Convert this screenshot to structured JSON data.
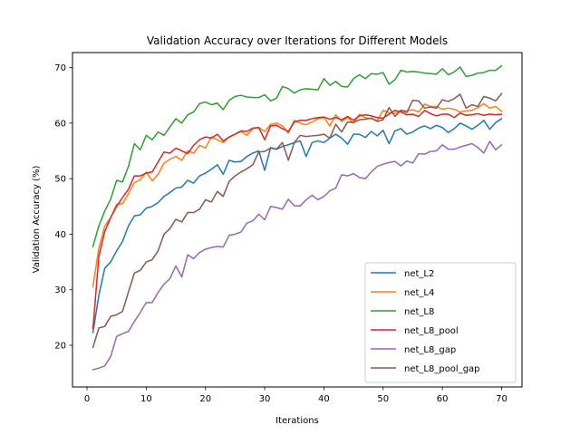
{
  "chart_data": {
    "type": "line",
    "title": "Validation Accuracy over Iterations for Different Models",
    "xlabel": "Iterations",
    "ylabel": "Validation Accuracy (%)",
    "xlim": [
      -2.45,
      73.45
    ],
    "ylim": [
      12.5,
      72.7
    ],
    "xticks": [
      0,
      10,
      20,
      30,
      40,
      50,
      60,
      70
    ],
    "yticks": [
      20,
      30,
      40,
      50,
      60,
      70
    ],
    "grid": false,
    "legend_position": "lower-right",
    "x": [
      1,
      2,
      3,
      4,
      5,
      6,
      7,
      8,
      9,
      10,
      11,
      12,
      13,
      14,
      15,
      16,
      17,
      18,
      19,
      20,
      21,
      22,
      23,
      24,
      25,
      26,
      27,
      28,
      29,
      30,
      31,
      32,
      33,
      34,
      35,
      36,
      37,
      38,
      39,
      40,
      41,
      42,
      43,
      44,
      45,
      46,
      47,
      48,
      49,
      50,
      51,
      52,
      53,
      54,
      55,
      56,
      57,
      58,
      59,
      60,
      61,
      62,
      63,
      64,
      65,
      66,
      67,
      68,
      69,
      70
    ],
    "series": [
      {
        "name": "net_L2",
        "color": "#1f77b4",
        "values": [
          22.3,
          29.0,
          33.9,
          35.0,
          37.0,
          38.7,
          41.5,
          43.3,
          43.5,
          44.7,
          45.0,
          45.7,
          46.8,
          47.5,
          48.3,
          48.5,
          49.7,
          49.2,
          50.5,
          51.0,
          51.7,
          52.5,
          50.8,
          53.3,
          53.0,
          53.1,
          54.0,
          54.6,
          55.0,
          51.5,
          55.6,
          55.3,
          55.8,
          56.1,
          56.5,
          56.8,
          54.0,
          56.5,
          56.8,
          56.5,
          57.3,
          58.0,
          57.3,
          56.2,
          58.0,
          58.0,
          57.4,
          58.5,
          57.7,
          58.7,
          56.3,
          58.6,
          59.0,
          58.0,
          58.4,
          59.1,
          59.5,
          59.0,
          59.6,
          59.2,
          58.3,
          59.0,
          60.0,
          59.5,
          58.9,
          59.6,
          60.5,
          58.9,
          60.1,
          60.8
        ]
      },
      {
        "name": "net_L4",
        "color": "#ff7f0e",
        "values": [
          30.6,
          37.5,
          41.5,
          43.0,
          45.4,
          45.5,
          47.3,
          49.3,
          49.8,
          51.2,
          49.6,
          50.8,
          52.8,
          53.5,
          54.0,
          53.3,
          55.0,
          54.6,
          56.0,
          55.5,
          57.5,
          57.0,
          56.5,
          57.5,
          58.0,
          58.5,
          57.8,
          59.0,
          59.2,
          58.5,
          59.8,
          60.0,
          59.5,
          58.2,
          60.5,
          60.0,
          59.7,
          60.2,
          60.8,
          61.0,
          59.5,
          61.5,
          60.3,
          61.0,
          60.0,
          61.6,
          61.0,
          60.8,
          60.5,
          62.3,
          61.9,
          61.7,
          62.3,
          62.2,
          62.4,
          62.0,
          63.4,
          63.0,
          63.0,
          62.5,
          62.7,
          62.5,
          62.0,
          62.2,
          62.3,
          62.8,
          63.5,
          62.7,
          63.0,
          62.1
        ]
      },
      {
        "name": "net_L8",
        "color": "#2ca02c",
        "values": [
          37.8,
          41.5,
          44.2,
          46.3,
          49.7,
          49.4,
          52.2,
          56.3,
          55.2,
          57.8,
          57.0,
          58.4,
          57.8,
          59.3,
          60.8,
          60.0,
          61.5,
          62.0,
          63.5,
          63.8,
          63.3,
          63.6,
          62.4,
          64.1,
          64.8,
          65.0,
          64.7,
          64.6,
          64.6,
          65.1,
          64.0,
          64.5,
          66.6,
          66.2,
          65.4,
          66.0,
          66.2,
          66.1,
          66.0,
          68.0,
          66.8,
          67.5,
          66.6,
          66.5,
          68.0,
          68.7,
          68.0,
          68.9,
          68.8,
          69.1,
          67.0,
          67.8,
          69.5,
          69.2,
          69.3,
          69.2,
          69.0,
          68.9,
          68.8,
          69.8,
          68.7,
          69.2,
          70.1,
          68.4,
          68.6,
          69.0,
          69.1,
          69.5,
          69.5,
          70.3
        ]
      },
      {
        "name": "net_L8_pool",
        "color": "#d62728",
        "values": [
          23.0,
          36.0,
          40.5,
          43.0,
          45.0,
          46.6,
          48.1,
          50.5,
          50.5,
          51.0,
          51.2,
          53.0,
          54.8,
          54.6,
          55.5,
          55.0,
          54.5,
          56.0,
          57.0,
          57.5,
          57.3,
          58.0,
          56.8,
          57.5,
          58.0,
          58.6,
          58.5,
          59.1,
          59.2,
          57.0,
          59.5,
          59.6,
          59.0,
          58.5,
          60.2,
          60.5,
          60.5,
          60.8,
          61.0,
          61.1,
          60.7,
          61.0,
          60.6,
          61.2,
          60.5,
          61.3,
          61.5,
          61.3,
          61.0,
          60.9,
          61.6,
          62.3,
          62.0,
          61.5,
          61.6,
          61.2,
          62.3,
          61.7,
          61.3,
          61.6,
          61.6,
          61.0,
          61.8,
          61.4,
          61.5,
          61.7,
          61.4,
          61.6,
          61.5,
          61.6
        ]
      },
      {
        "name": "net_L8_gap",
        "color": "#9467bd",
        "values": [
          15.6,
          15.9,
          16.3,
          18.0,
          21.6,
          22.1,
          22.5,
          24.3,
          25.9,
          27.7,
          27.7,
          29.5,
          31.0,
          32.0,
          34.3,
          32.3,
          36.3,
          35.6,
          36.7,
          37.3,
          37.6,
          37.8,
          37.7,
          39.8,
          40.0,
          40.4,
          42.0,
          42.4,
          43.6,
          42.6,
          45.0,
          44.8,
          44.5,
          46.3,
          45.1,
          45.1,
          46.2,
          47.0,
          46.2,
          46.8,
          47.8,
          48.3,
          50.7,
          50.5,
          50.9,
          50.2,
          50.0,
          51.2,
          52.2,
          52.6,
          52.9,
          53.1,
          52.3,
          53.2,
          52.8,
          54.5,
          54.4,
          54.9,
          55.0,
          56.1,
          55.3,
          55.3,
          55.7,
          56.0,
          56.3,
          55.6,
          54.6,
          56.7,
          55.2,
          56.1
        ]
      },
      {
        "name": "net_L8_pool_gap",
        "color": "#8c564b",
        "values": [
          19.6,
          23.1,
          23.4,
          25.2,
          25.5,
          26.1,
          29.6,
          33.0,
          33.5,
          35.0,
          35.4,
          37.0,
          40.0,
          41.0,
          42.7,
          42.2,
          43.9,
          43.9,
          44.5,
          46.2,
          45.8,
          47.7,
          46.8,
          49.5,
          50.5,
          51.2,
          51.8,
          52.5,
          54.8,
          54.9,
          55.5,
          55.3,
          56.5,
          53.3,
          56.5,
          57.8,
          57.6,
          57.7,
          57.8,
          58.0,
          57.3,
          59.8,
          58.4,
          60.2,
          60.1,
          60.6,
          60.7,
          60.9,
          60.3,
          60.6,
          62.8,
          61.2,
          62.3,
          61.9,
          64.1,
          64.0,
          62.7,
          62.9,
          62.7,
          64.2,
          63.9,
          64.4,
          65.2,
          62.7,
          63.3,
          63.0,
          64.8,
          64.5,
          64.0,
          65.3
        ]
      }
    ]
  }
}
